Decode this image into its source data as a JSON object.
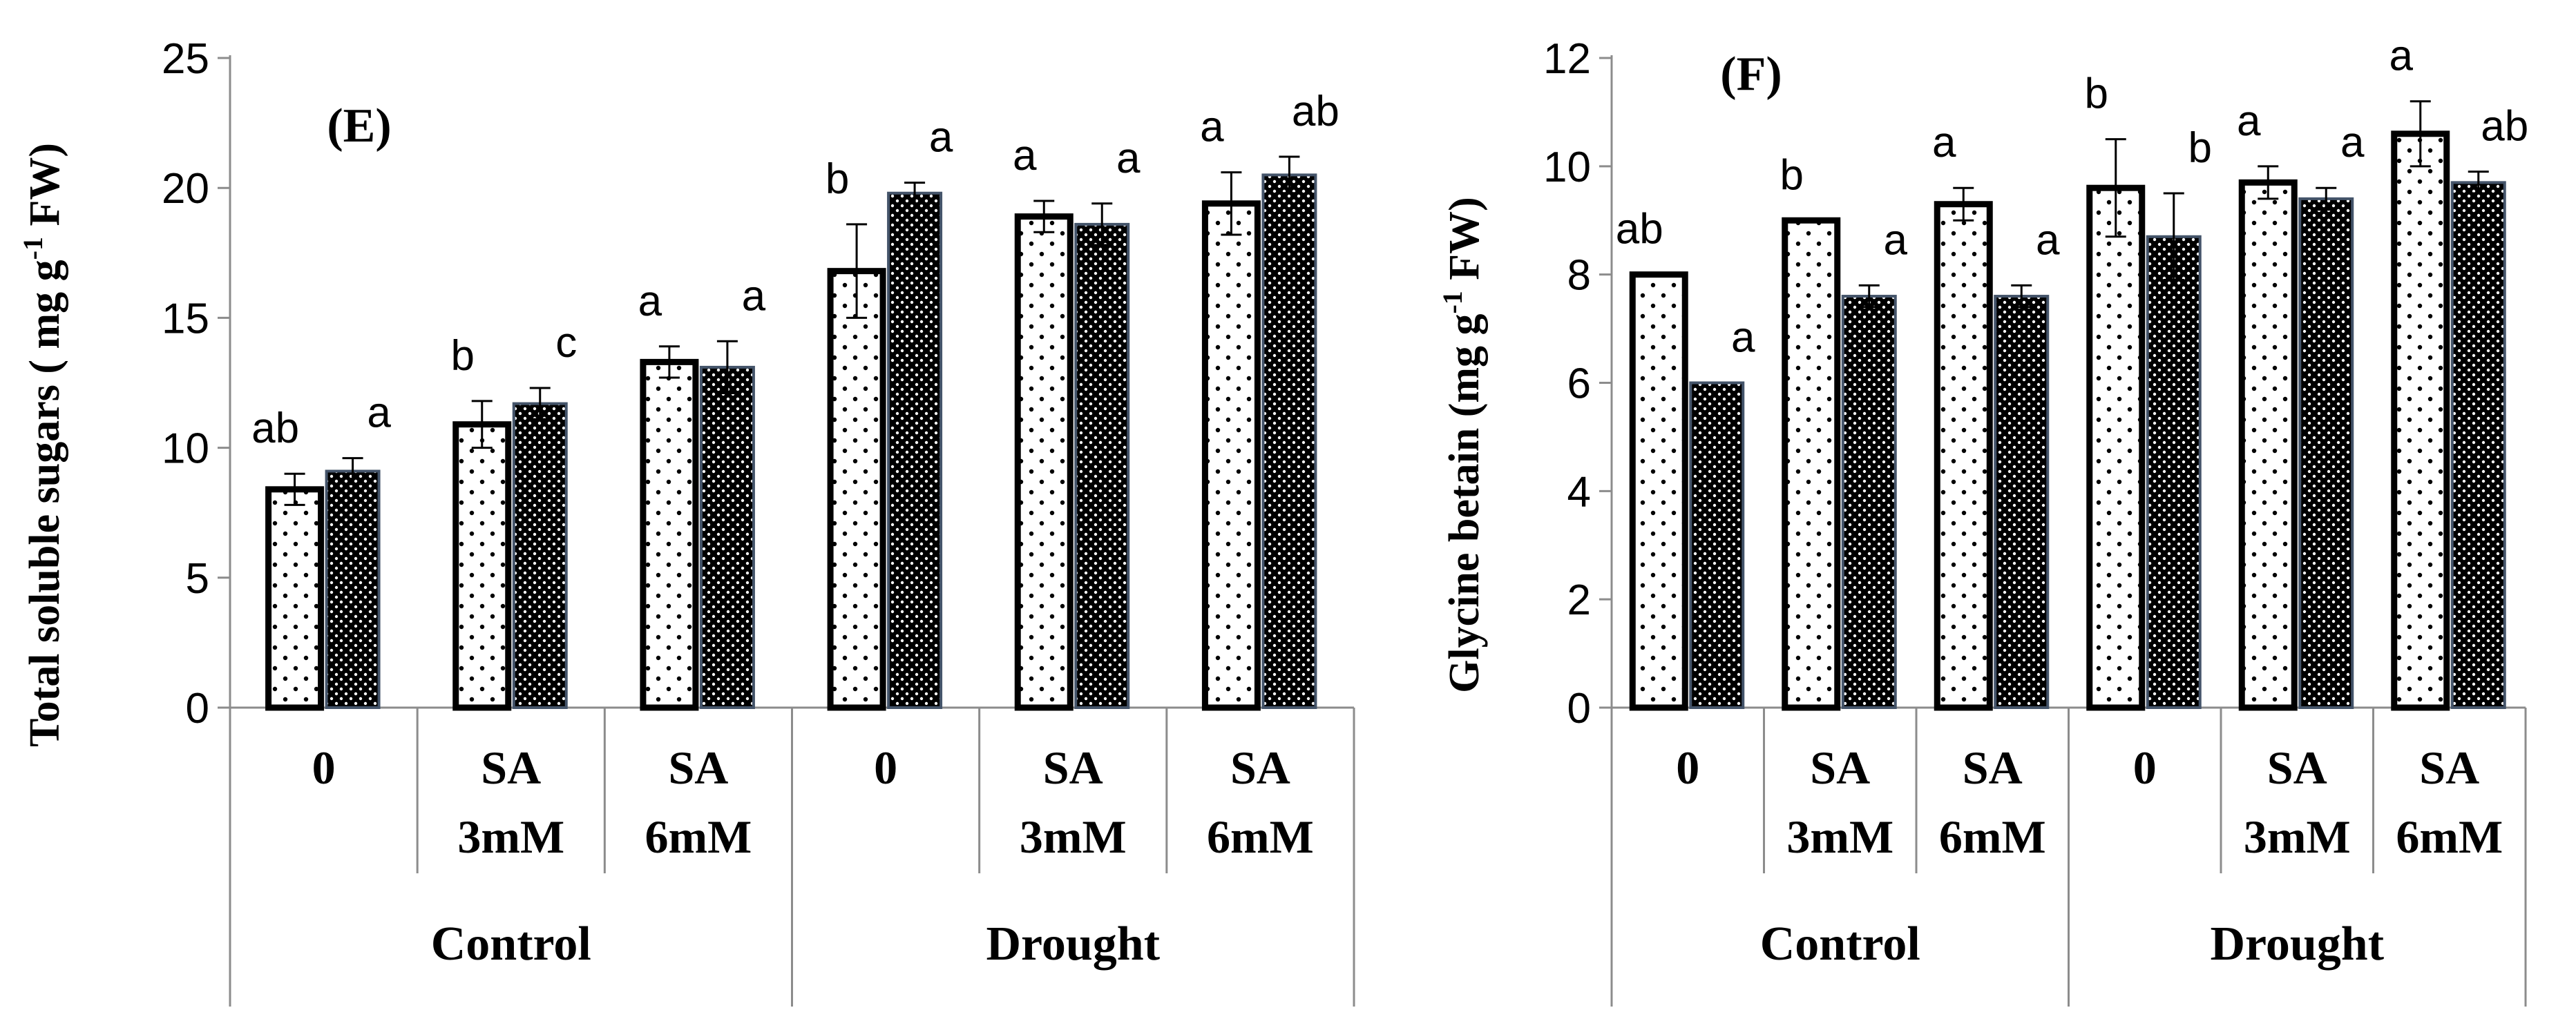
{
  "chart_data": [
    {
      "type": "bar",
      "panel_label": "(E)",
      "ylabel": "Total soluble sugars ( mg g",
      "ylabel_sup": "-1",
      "ylabel_end": " FW)",
      "ylim": [
        0,
        25
      ],
      "yticks": [
        0,
        5,
        10,
        15,
        20,
        25
      ],
      "groups": [
        "Control",
        "Drought"
      ],
      "categories": [
        "0",
        "SA 3mM",
        "SA 6mM",
        "0",
        "SA 3mM",
        "SA 6mM"
      ],
      "category_lines": [
        [
          "0"
        ],
        [
          "SA",
          "3mM"
        ],
        [
          "SA",
          "6mM"
        ],
        [
          "0"
        ],
        [
          "SA",
          "3mM"
        ],
        [
          "SA",
          "6mM"
        ]
      ],
      "series": [
        {
          "name": "dotted",
          "pattern": "sparse-dots",
          "values": [
            8.4,
            10.9,
            13.3,
            16.8,
            18.9,
            19.4
          ],
          "errors": [
            0.6,
            0.9,
            0.6,
            1.8,
            0.6,
            1.2
          ],
          "letters": [
            "ab",
            "b",
            "a",
            "b",
            "a",
            "a"
          ]
        },
        {
          "name": "dense",
          "pattern": "dense-dots",
          "values": [
            9.1,
            11.7,
            13.1,
            19.8,
            18.6,
            20.5
          ],
          "errors": [
            0.5,
            0.6,
            1.0,
            0.4,
            0.8,
            0.7
          ],
          "letters": [
            "a",
            "c",
            "a",
            "a",
            "a",
            "ab"
          ]
        }
      ]
    },
    {
      "type": "bar",
      "panel_label": "(F)",
      "ylabel": "Glycine betain (mg g",
      "ylabel_sup": "-1",
      "ylabel_end": " FW)",
      "ylim": [
        0,
        12
      ],
      "yticks": [
        0,
        2,
        4,
        6,
        8,
        10,
        12
      ],
      "groups": [
        "Control",
        "Drought"
      ],
      "categories": [
        "0",
        "SA 3mM",
        "SA 6mM",
        "0",
        "SA 3mM",
        "SA 6mM"
      ],
      "category_lines": [
        [
          "0"
        ],
        [
          "SA",
          "3mM"
        ],
        [
          "SA",
          "6mM"
        ],
        [
          "0"
        ],
        [
          "SA",
          "3mM"
        ],
        [
          "SA",
          "6mM"
        ]
      ],
      "series": [
        {
          "name": "dotted",
          "pattern": "sparse-dots",
          "values": [
            8.0,
            9.0,
            9.3,
            9.6,
            9.7,
            10.6
          ],
          "errors": [
            0.0,
            0.0,
            0.3,
            0.9,
            0.3,
            0.6
          ],
          "letters": [
            "ab",
            "b",
            "a",
            "b",
            "a",
            "a"
          ]
        },
        {
          "name": "dense",
          "pattern": "dense-dots",
          "values": [
            6.0,
            7.6,
            7.6,
            8.7,
            9.4,
            9.7
          ],
          "errors": [
            0.0,
            0.2,
            0.2,
            0.8,
            0.2,
            0.2
          ],
          "letters": [
            "a",
            "a",
            "a",
            "b",
            "a",
            "ab"
          ]
        }
      ]
    }
  ]
}
